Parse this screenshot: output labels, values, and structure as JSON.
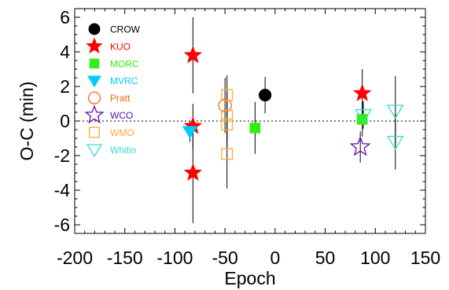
{
  "chart_data": {
    "type": "scatter",
    "title": "",
    "xlabel": "Epoch",
    "ylabel": "O-C (min)",
    "xlim": [
      -200,
      150
    ],
    "ylim": [
      -6.5,
      6.5
    ],
    "xticks": [
      -200,
      -150,
      -100,
      -50,
      0,
      50,
      100,
      150
    ],
    "yticks": [
      -6,
      -4,
      -2,
      0,
      2,
      4,
      6
    ],
    "xtick_labels": [
      "-200",
      "-150",
      "-100",
      "-50",
      "0",
      "50",
      "100",
      "150"
    ],
    "ytick_labels": [
      "-6",
      "-4",
      "-2",
      "0",
      "2",
      "4",
      "6"
    ],
    "reference_line": {
      "y": 0,
      "style": "dotted"
    },
    "legend_position": "top-left",
    "series": [
      {
        "name": "CROW",
        "marker": "circle",
        "filled": true,
        "color": "#000000",
        "points": [
          {
            "x": -10,
            "y": 1.5,
            "err": 1.05
          }
        ]
      },
      {
        "name": "KUO",
        "marker": "star",
        "filled": true,
        "color": "#ff0000",
        "points": [
          {
            "x": -82,
            "y": 3.8,
            "err": 2.2
          },
          {
            "x": -82,
            "y": -0.3,
            "err": 1.3
          },
          {
            "x": -82,
            "y": -3.0,
            "err": 2.9
          },
          {
            "x": 87,
            "y": 1.6,
            "err": 1.4
          }
        ]
      },
      {
        "name": "MORC",
        "marker": "square",
        "filled": true,
        "color": "#33ee11",
        "points": [
          {
            "x": -20,
            "y": -0.4,
            "err": 1.5
          },
          {
            "x": 87,
            "y": 0.1,
            "err": 1.0
          }
        ]
      },
      {
        "name": "MVRC",
        "marker": "triangle-down",
        "filled": true,
        "color": "#00ccff",
        "points": [
          {
            "x": -85,
            "y": -0.6,
            "err": 0.6
          }
        ]
      },
      {
        "name": "Pratt",
        "marker": "circle",
        "filled": false,
        "color": "#ff6611",
        "points": [
          {
            "x": -50,
            "y": 0.9,
            "err": 1.6
          }
        ]
      },
      {
        "name": "WCO",
        "marker": "star",
        "filled": false,
        "color": "#6611aa",
        "points": [
          {
            "x": 85,
            "y": -1.5,
            "err": 0.9
          }
        ]
      },
      {
        "name": "WMO",
        "marker": "square",
        "filled": false,
        "color": "#ffaa33",
        "points": [
          {
            "x": -48,
            "y": 1.5,
            "err": 1.15
          },
          {
            "x": -48,
            "y": 0.3,
            "err": 1.4
          },
          {
            "x": -48,
            "y": -0.2,
            "err": 1.3
          },
          {
            "x": -48,
            "y": -1.9,
            "err": 2.0
          }
        ]
      },
      {
        "name": "Whitin",
        "marker": "triangle-down",
        "filled": false,
        "color": "#33ddcc",
        "points": [
          {
            "x": 120,
            "y": 0.6,
            "err": 2.0
          },
          {
            "x": 120,
            "y": -1.2,
            "err": 1.6
          },
          {
            "x": 88,
            "y": 0.35,
            "err": 0.8
          }
        ]
      }
    ]
  }
}
